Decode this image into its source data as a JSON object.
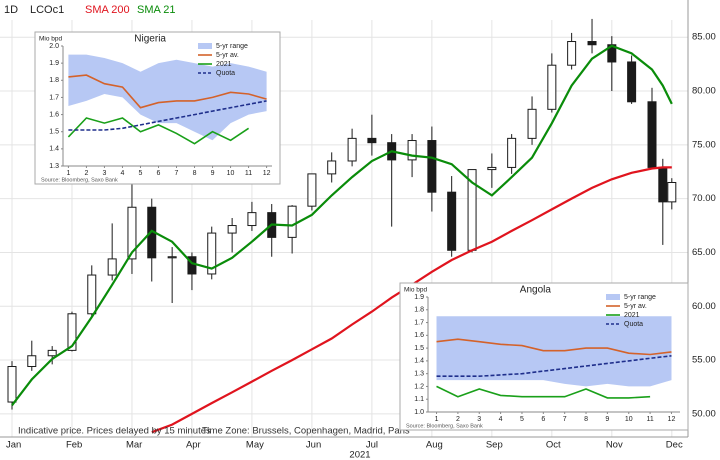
{
  "chart_data": [
    {
      "type": "candlestick",
      "interval": "1D",
      "symbol": "LCOc1",
      "notes": [
        "Indicative price. Prices delayed by 15 minutes",
        "Time Zone: Brussels, Copenhagen, Madrid, Paris"
      ],
      "x_label": "2021",
      "x": [
        1.0,
        1.33,
        1.67,
        2.0,
        2.33,
        2.67,
        3.0,
        3.33,
        3.67,
        4.0,
        4.33,
        4.67,
        5.0,
        5.33,
        5.67,
        6.0,
        6.33,
        6.67,
        7.0,
        7.33,
        7.67,
        8.0,
        8.33,
        8.67,
        9.0,
        9.33,
        9.67,
        10.0,
        10.33,
        10.67,
        11.0,
        11.33,
        11.67,
        11.85,
        12.0
      ],
      "open": [
        51.1,
        54.4,
        55.4,
        55.9,
        59.3,
        62.9,
        64.4,
        69.2,
        64.5,
        64.6,
        63.0,
        66.8,
        67.5,
        68.7,
        66.4,
        69.3,
        72.3,
        73.5,
        75.6,
        75.2,
        73.6,
        75.4,
        70.6,
        65.2,
        72.7,
        72.9,
        75.6,
        78.3,
        82.4,
        84.6,
        84.3,
        82.7,
        79.0,
        72.9,
        69.7
      ],
      "high": [
        54.9,
        56.8,
        56.3,
        59.5,
        63.8,
        67.7,
        71.4,
        70.0,
        65.5,
        65.0,
        67.4,
        68.2,
        69.7,
        69.5,
        69.4,
        72.3,
        74.3,
        76.5,
        77.8,
        76.0,
        76.0,
        76.7,
        72.1,
        72.7,
        74.2,
        76.0,
        79.5,
        83.5,
        85.4,
        86.7,
        85.1,
        83.3,
        80.3,
        73.7,
        71.9
      ],
      "low": [
        50.4,
        54.0,
        54.6,
        55.8,
        59.0,
        62.4,
        63.0,
        62.3,
        60.3,
        61.5,
        62.5,
        65.0,
        67.0,
        64.6,
        64.9,
        68.9,
        71.5,
        73.0,
        74.0,
        67.4,
        72.0,
        68.8,
        64.6,
        65.0,
        71.0,
        72.3,
        75.0,
        78.0,
        82.0,
        83.5,
        80.0,
        78.8,
        72.9,
        65.7,
        69.0
      ],
      "close": [
        54.4,
        55.4,
        55.9,
        59.3,
        62.9,
        64.4,
        69.2,
        64.5,
        64.6,
        63.0,
        66.8,
        67.5,
        68.7,
        66.4,
        69.3,
        72.3,
        73.5,
        75.6,
        75.2,
        73.6,
        75.4,
        70.6,
        65.2,
        72.7,
        72.9,
        75.6,
        78.3,
        82.4,
        84.6,
        84.3,
        82.7,
        79.0,
        72.9,
        69.7,
        71.5
      ],
      "up_color": "#ffffff",
      "down_color": "#1a1a1a",
      "series": [
        {
          "name": "SMA 200",
          "color": "#e0141e",
          "values": [
            null,
            null,
            null,
            null,
            null,
            null,
            null,
            48.3,
            49.0,
            50.0,
            51.0,
            52.0,
            53.0,
            54.0,
            55.0,
            56.0,
            57.0,
            58.3,
            59.5,
            60.8,
            62.0,
            63.2,
            64.3,
            65.2,
            66.0,
            67.0,
            68.0,
            69.0,
            70.0,
            71.0,
            71.8,
            72.4,
            72.8,
            72.9,
            72.9
          ]
        },
        {
          "name": "SMA 21",
          "color": "#0a8c0a",
          "values": [
            50.8,
            53.2,
            55.1,
            56.3,
            59.0,
            62.0,
            65.0,
            67.0,
            66.0,
            64.0,
            63.5,
            64.5,
            66.0,
            67.6,
            67.5,
            68.5,
            70.3,
            72.0,
            73.5,
            74.4,
            74.0,
            73.8,
            73.2,
            71.5,
            70.3,
            72.0,
            73.8,
            77.0,
            80.5,
            83.0,
            84.2,
            83.5,
            82.0,
            80.5,
            78.8
          ]
        }
      ],
      "xlim": [
        0.8,
        12.27
      ],
      "xticks": [
        {
          "value": 1,
          "label": "Jan"
        },
        {
          "value": 2,
          "label": "Feb"
        },
        {
          "value": 3,
          "label": "Mar"
        },
        {
          "value": 4,
          "label": "Apr"
        },
        {
          "value": 5,
          "label": "May"
        },
        {
          "value": 6,
          "label": "Jun"
        },
        {
          "value": 7,
          "label": "Jul"
        },
        {
          "value": 8,
          "label": "Aug"
        },
        {
          "value": 9,
          "label": "Sep"
        },
        {
          "value": 10,
          "label": "Oct"
        },
        {
          "value": 11,
          "label": "Nov"
        },
        {
          "value": 12,
          "label": "Dec"
        }
      ],
      "ylim": [
        47.85,
        86.6
      ],
      "yticks": [
        {
          "value": 50,
          "label": "50.00"
        },
        {
          "value": 55,
          "label": "55.00"
        },
        {
          "value": 60,
          "label": "60.00"
        },
        {
          "value": 65,
          "label": "65.00"
        },
        {
          "value": 70,
          "label": "70.00"
        },
        {
          "value": 75,
          "label": "75.00"
        },
        {
          "value": 80,
          "label": "80.00"
        },
        {
          "value": 85,
          "label": "85.00"
        }
      ],
      "grid": true
    },
    {
      "type": "line",
      "title": "Nigeria",
      "y_label": "Mio bpd",
      "source": "Source: Bloomberg, Saxo Bank",
      "x": [
        1,
        2,
        3,
        4,
        5,
        6,
        7,
        8,
        9,
        10,
        11,
        12
      ],
      "series": [
        {
          "name": "5-yr range",
          "color": "#b7c8f4",
          "high": [
            1.95,
            1.95,
            1.93,
            1.9,
            1.85,
            1.9,
            1.92,
            1.9,
            1.88,
            1.9,
            1.88,
            1.85
          ],
          "low": [
            1.65,
            1.68,
            1.72,
            1.7,
            1.6,
            1.55,
            1.55,
            1.5,
            1.45,
            1.55,
            1.6,
            1.62
          ]
        },
        {
          "name": "5-yr av.",
          "color": "#d4622a",
          "values": [
            1.82,
            1.83,
            1.78,
            1.76,
            1.64,
            1.67,
            1.68,
            1.68,
            1.7,
            1.73,
            1.72,
            1.69
          ]
        },
        {
          "name": "2021",
          "color": "#1aa01a",
          "values": [
            1.47,
            1.58,
            1.55,
            1.58,
            1.5,
            1.54,
            1.49,
            1.43,
            1.5,
            1.45,
            1.52,
            null
          ]
        },
        {
          "name": "Quota",
          "color": "#1f2f8c",
          "dash": true,
          "values": [
            1.51,
            1.51,
            1.51,
            1.52,
            1.54,
            1.56,
            1.58,
            1.6,
            1.62,
            1.64,
            1.66,
            1.68
          ]
        }
      ],
      "xlim": [
        0.7,
        12.3
      ],
      "xticks": [
        1,
        2,
        3,
        4,
        5,
        6,
        7,
        8,
        9,
        10,
        11,
        12
      ],
      "ylim": [
        1.3,
        2.0
      ],
      "yticks": [
        1.3,
        1.4,
        1.5,
        1.6,
        1.7,
        1.8,
        1.9,
        {
          "value": 2,
          "label": "2.0"
        }
      ]
    },
    {
      "type": "line",
      "title": "Angola",
      "y_label": "Mio bpd",
      "source": "Source: Bloomberg, Saxo Bank",
      "x": [
        1,
        2,
        3,
        4,
        5,
        6,
        7,
        8,
        9,
        10,
        11,
        12
      ],
      "series": [
        {
          "name": "5-yr range",
          "color": "#b7c8f4",
          "high": [
            1.75,
            1.75,
            1.75,
            1.75,
            1.75,
            1.75,
            1.75,
            1.75,
            1.75,
            1.75,
            1.75,
            1.75
          ],
          "low": [
            1.25,
            1.25,
            1.25,
            1.25,
            1.25,
            1.25,
            1.22,
            1.2,
            1.22,
            1.2,
            1.2,
            1.25
          ]
        },
        {
          "name": "5-yr av.",
          "color": "#d4622a",
          "values": [
            1.55,
            1.57,
            1.55,
            1.53,
            1.52,
            1.48,
            1.48,
            1.5,
            1.5,
            1.46,
            1.45,
            1.47
          ]
        },
        {
          "name": "2021",
          "color": "#1aa01a",
          "values": [
            1.2,
            1.12,
            1.18,
            1.13,
            1.12,
            1.12,
            1.12,
            1.18,
            1.11,
            1.11,
            1.12,
            null
          ]
        },
        {
          "name": "Quota",
          "color": "#1f2f8c",
          "dash": true,
          "values": [
            1.28,
            1.28,
            1.28,
            1.29,
            1.3,
            1.32,
            1.34,
            1.36,
            1.38,
            1.4,
            1.42,
            1.44
          ]
        }
      ],
      "xlim": [
        0.6,
        12.4
      ],
      "xticks": [
        1,
        2,
        3,
        4,
        5,
        6,
        7,
        8,
        9,
        10,
        11,
        12
      ],
      "ylim": [
        1.0,
        1.9
      ],
      "yticks": [
        {
          "value": 1,
          "label": "1.0"
        },
        1.1,
        1.2,
        1.3,
        1.4,
        1.5,
        1.6,
        1.7,
        1.8,
        1.9
      ]
    }
  ]
}
